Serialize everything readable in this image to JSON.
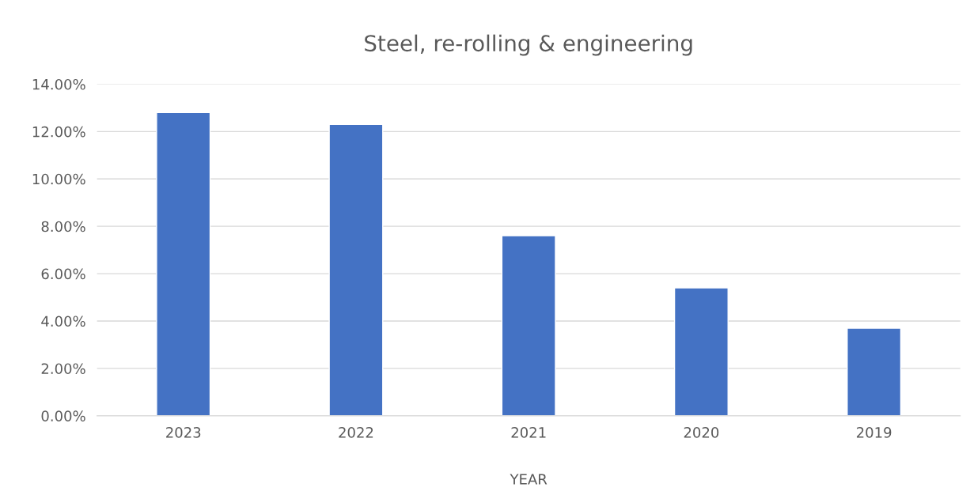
{
  "chart_data": {
    "type": "bar",
    "title": "Steel, re-rolling & engineering",
    "xlabel": "YEAR",
    "categories": [
      "2023",
      "2022",
      "2021",
      "2020",
      "2019"
    ],
    "values": [
      12.8,
      12.3,
      7.6,
      5.4,
      3.7
    ],
    "color": "#4472c4",
    "ylim": [
      0,
      14
    ],
    "yticks": [
      {
        "value": 0,
        "label": "0.00%"
      },
      {
        "value": 2,
        "label": "2.00%"
      },
      {
        "value": 4,
        "label": "4.00%"
      },
      {
        "value": 6,
        "label": "6.00%"
      },
      {
        "value": 8,
        "label": "8.00%"
      },
      {
        "value": 10,
        "label": "10.00%"
      },
      {
        "value": 12,
        "label": "12.00%"
      },
      {
        "value": 14,
        "label": "14.00%"
      }
    ],
    "grid": "y",
    "legend": false
  }
}
